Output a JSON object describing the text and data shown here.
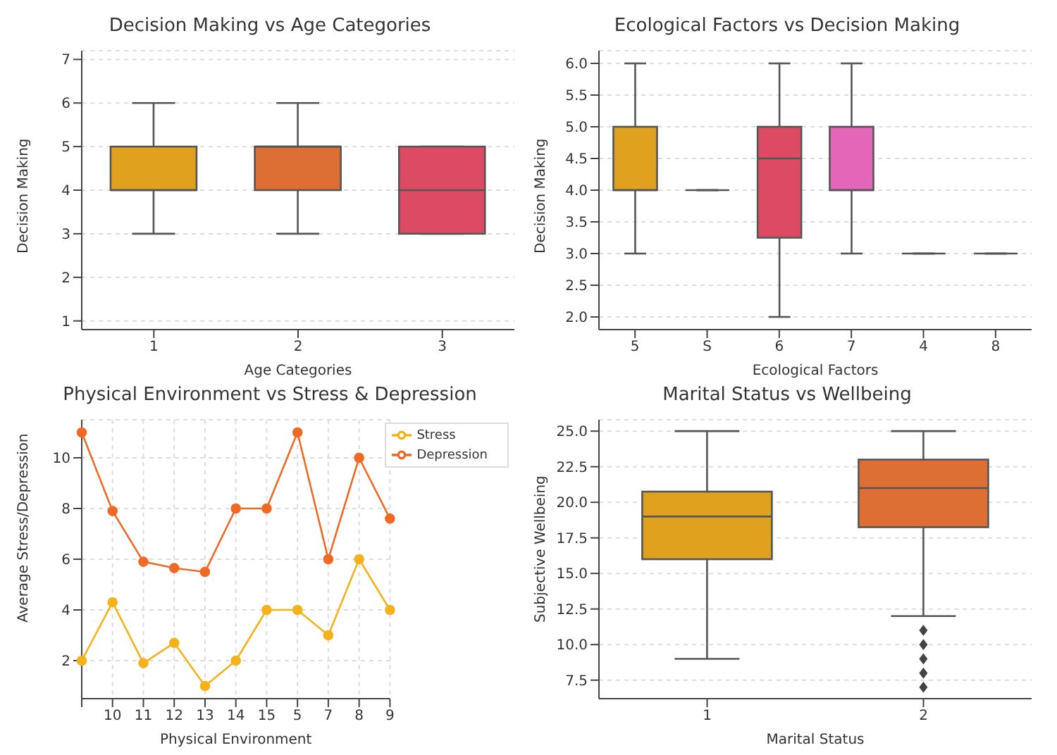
{
  "chart_data": [
    {
      "type": "box",
      "title": "Decision Making vs Age Categories",
      "xlabel": "Age Categories",
      "ylabel": "Decision Making",
      "categories": [
        "1",
        "2",
        "3"
      ],
      "boxes": [
        {
          "low": 3,
          "q1": 4,
          "median": 4,
          "q3": 5,
          "high": 6
        },
        {
          "low": 3,
          "q1": 4,
          "median": 5,
          "q3": 5,
          "high": 6
        },
        {
          "low": 3,
          "q1": 3,
          "median": 4,
          "q3": 5,
          "high": 5
        }
      ],
      "colors": [
        "#e0a21e",
        "#dd6f35",
        "#dc4a64"
      ],
      "ylim": [
        0.8,
        7.2
      ],
      "yticks": [
        1,
        2,
        3,
        4,
        5,
        6,
        7
      ],
      "grid": "y"
    },
    {
      "type": "box",
      "title": "Ecological Factors vs Decision Making",
      "xlabel": "Ecological Factors",
      "ylabel": "Decision Making",
      "categories": [
        "5",
        "S",
        "6",
        "7",
        "4",
        "8"
      ],
      "boxes": [
        {
          "low": 3,
          "q1": 4,
          "median": 4,
          "q3": 5,
          "high": 6
        },
        {
          "low": 4,
          "q1": 4,
          "median": 4,
          "q3": 4,
          "high": 4
        },
        {
          "low": 2,
          "q1": 3.25,
          "median": 4.5,
          "q3": 5,
          "high": 6
        },
        {
          "low": 3,
          "q1": 4,
          "median": 4,
          "q3": 5,
          "high": 6
        },
        {
          "low": 3,
          "q1": 3,
          "median": 3,
          "q3": 3,
          "high": 3
        },
        {
          "low": 3,
          "q1": 3,
          "median": 3,
          "q3": 3,
          "high": 3
        }
      ],
      "colors": [
        "#e0a21e",
        null,
        "#dc4a64",
        "#e466b8",
        null,
        null
      ],
      "ylim": [
        1.8,
        6.2
      ],
      "yticks": [
        {
          "value": 2,
          "label": "2.0"
        },
        {
          "value": 2.5,
          "label": "2.5"
        },
        {
          "value": 3,
          "label": "3.0"
        },
        {
          "value": 3.5,
          "label": "3.5"
        },
        {
          "value": 4,
          "label": "4.0"
        },
        {
          "value": 4.5,
          "label": "4.5"
        },
        {
          "value": 5,
          "label": "5.0"
        },
        {
          "value": 5.5,
          "label": "5.5"
        },
        {
          "value": 6,
          "label": "6.0"
        }
      ],
      "grid": "y"
    },
    {
      "type": "line",
      "title": "Physical Environment vs Stress & Depression",
      "xlabel": "Physical Environment",
      "ylabel": "Average Stress/Depression",
      "categories": [
        null,
        "10",
        "11",
        "12",
        "13",
        "14",
        "15",
        "5",
        "7",
        "8",
        "9"
      ],
      "series": [
        {
          "name": "Stress",
          "color": "#f5b21a",
          "values": [
            2,
            4.3,
            1.9,
            2.7,
            1,
            2,
            4,
            4,
            3,
            6,
            4
          ]
        },
        {
          "name": "Depression",
          "color": "#f06a26",
          "values": [
            11,
            7.9,
            5.9,
            5.65,
            5.5,
            8,
            8,
            11,
            6,
            10,
            7.6
          ]
        }
      ],
      "ylim": [
        0.5,
        11.5
      ],
      "yticks": [
        2,
        4,
        6,
        8,
        10
      ],
      "grid": true,
      "legend": "top right",
      "marker": "circle",
      "line_style": "solid"
    },
    {
      "type": "box",
      "title": "Marital Status vs Wellbeing",
      "xlabel": "Marital Status",
      "ylabel": "Subjective Wellbeing",
      "categories": [
        "1",
        "2"
      ],
      "boxes": [
        {
          "low": 9,
          "q1": 16,
          "median": 19,
          "q3": 20.75,
          "high": 25
        },
        {
          "low": 12,
          "q1": 18.25,
          "median": 21,
          "q3": 23,
          "high": 25,
          "outliers": [
            11,
            10,
            9,
            8,
            7
          ]
        }
      ],
      "colors": [
        "#e0a21e",
        "#dd6f35"
      ],
      "ylim": [
        6.2,
        25.8
      ],
      "yticks": [
        {
          "value": 7.5,
          "label": "7.5"
        },
        {
          "value": 10,
          "label": "10.0"
        },
        {
          "value": 12.5,
          "label": "12.5"
        },
        {
          "value": 15,
          "label": "15.0"
        },
        {
          "value": 17.5,
          "label": "17.5"
        },
        {
          "value": 20,
          "label": "20.0"
        },
        {
          "value": 22.5,
          "label": "22.5"
        },
        {
          "value": 25,
          "label": "25.0"
        }
      ],
      "grid": "y"
    }
  ]
}
